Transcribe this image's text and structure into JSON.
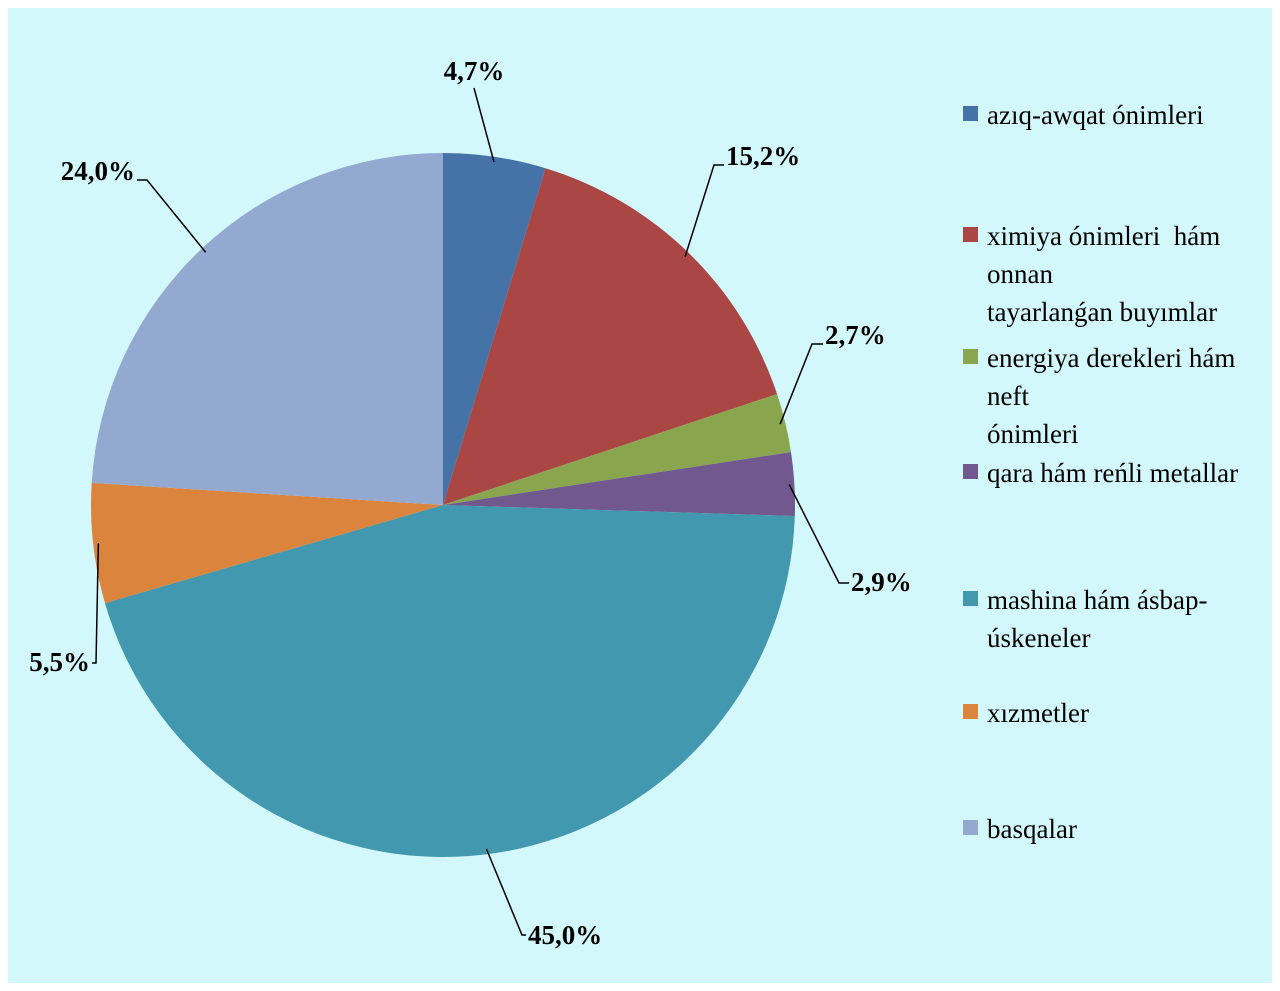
{
  "chart_data": {
    "type": "pie",
    "start_angle_deg": 0,
    "direction": "clockwise",
    "legend_position": "right",
    "slices": [
      {
        "label": "azıq-awqat ónimleri",
        "legend_lines": [
          "azıq-awqat ónimleri"
        ],
        "value": 4.7,
        "display": "4,7%",
        "color": "#4572a7"
      },
      {
        "label": "ximiya ónimleri  hám onnan tayarlanǵan buyımlar",
        "legend_lines": [
          "ximiya ónimleri  hám",
          "onnan",
          "tayarlanǵan buyımlar"
        ],
        "value": 15.2,
        "display": "15,2%",
        "color": "#aa4643"
      },
      {
        "label": "energiya derekleri hám neft ónimleri",
        "legend_lines": [
          "energiya derekleri hám",
          "neft",
          "ónimleri"
        ],
        "value": 2.7,
        "display": "2,7%",
        "color": "#89a54e"
      },
      {
        "label": "qara hám reńli metallar",
        "legend_lines": [
          "qara hám reńli metallar"
        ],
        "value": 2.9,
        "display": "2,9%",
        "color": "#71588f"
      },
      {
        "label": "mashina hám ásbap-úskeneler",
        "legend_lines": [
          "mashina hám ásbap-",
          "úskeneler"
        ],
        "value": 45.0,
        "display": "45,0%",
        "color": "#4198af"
      },
      {
        "label": "xızmetler",
        "legend_lines": [
          "xızmetler"
        ],
        "value": 5.5,
        "display": "5,5%",
        "color": "#db843d"
      },
      {
        "label": "basqalar",
        "legend_lines": [
          "basqalar"
        ],
        "value": 24.0,
        "display": "24,0%",
        "color": "#93a9cf"
      }
    ]
  }
}
